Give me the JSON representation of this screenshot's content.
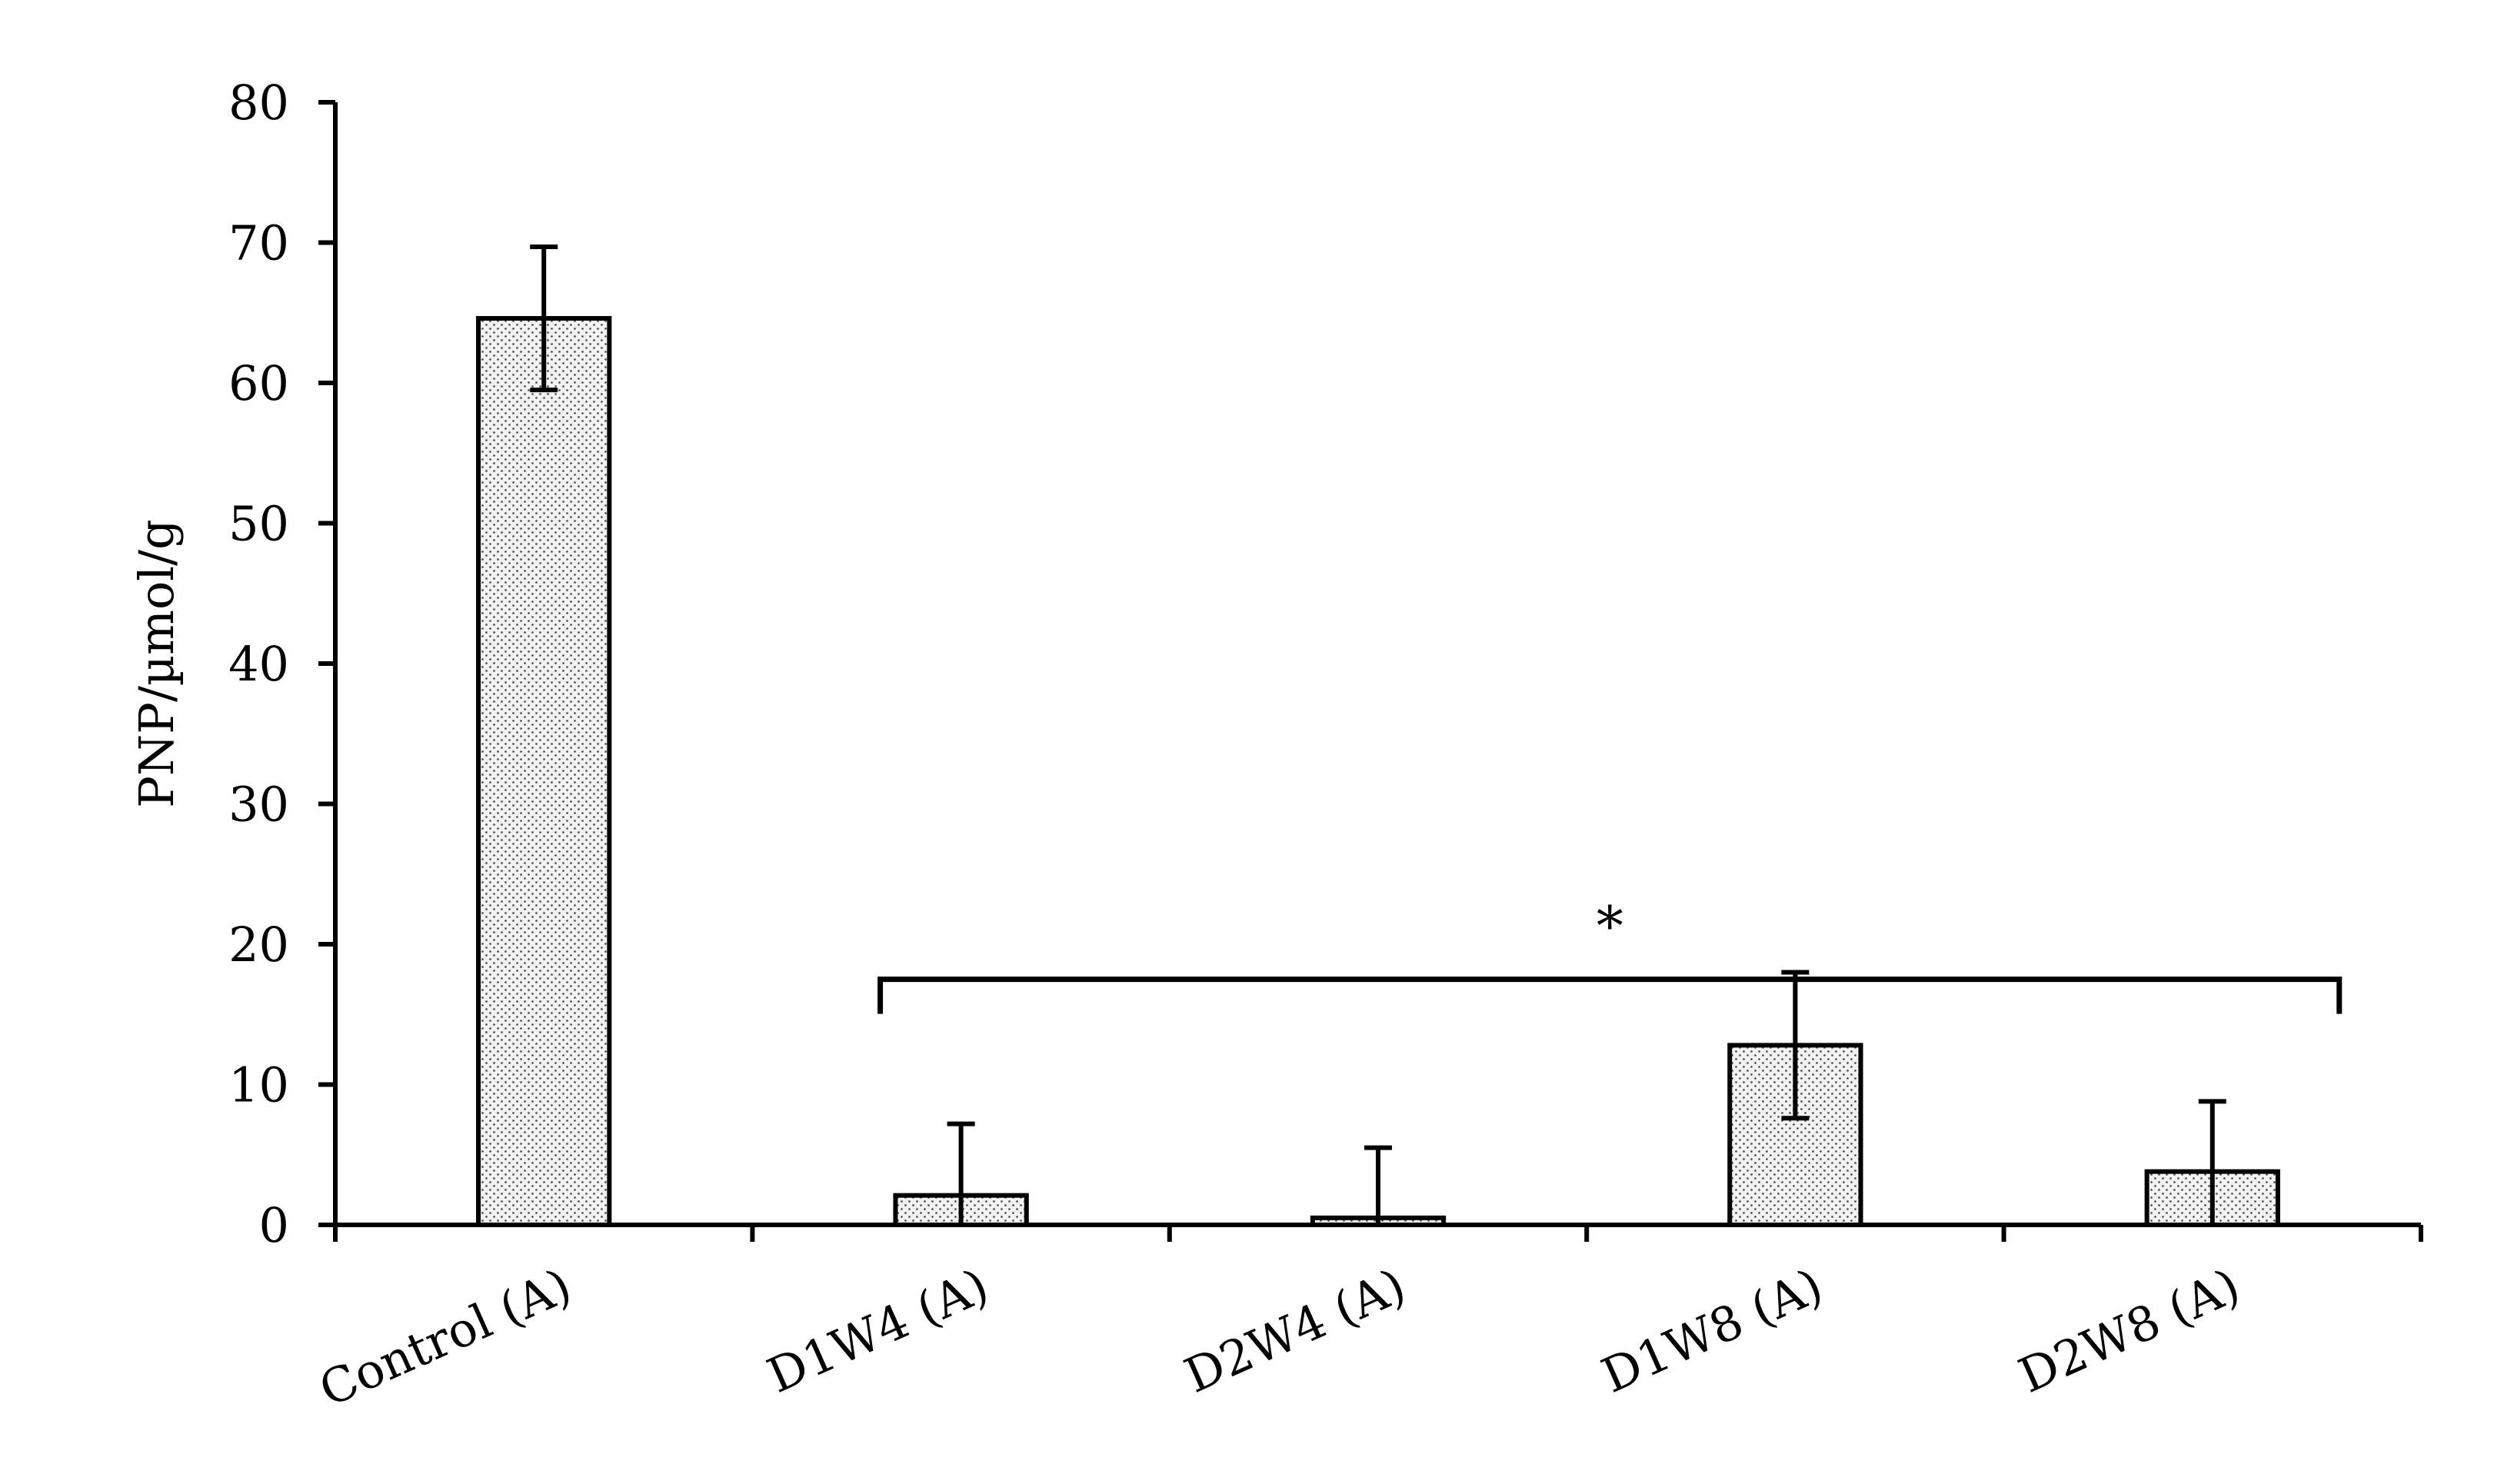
{
  "chart_data": {
    "type": "bar",
    "categories": [
      "Control (A)",
      "D1W4 (A)",
      "D2W4 (A)",
      "D1W8 (A)",
      "D2W8 (A)"
    ],
    "values": [
      64.6,
      2.1,
      0.5,
      12.8,
      3.8
    ],
    "error": [
      5.1,
      5.1,
      5.0,
      5.2,
      5.0
    ],
    "title": "",
    "xlabel": "",
    "ylabel": "PNP/µmol/g",
    "ylim": [
      0,
      80
    ],
    "yticks": [
      0,
      10,
      20,
      30,
      40,
      50,
      60,
      70,
      80
    ],
    "ytick_labels": [
      "0",
      "10",
      "20",
      "30",
      "40",
      "50",
      "60",
      "70",
      "80"
    ],
    "grid": false,
    "bar_fill": "dotted",
    "annotation": {
      "text": "*",
      "from_category": "D1W4 (A)",
      "to_category": "D2W8 (A)",
      "y": 17.5
    },
    "colors": {
      "bar_fill": "#f2f2f2",
      "bar_dots": "#555555",
      "stroke": "#000000"
    }
  }
}
